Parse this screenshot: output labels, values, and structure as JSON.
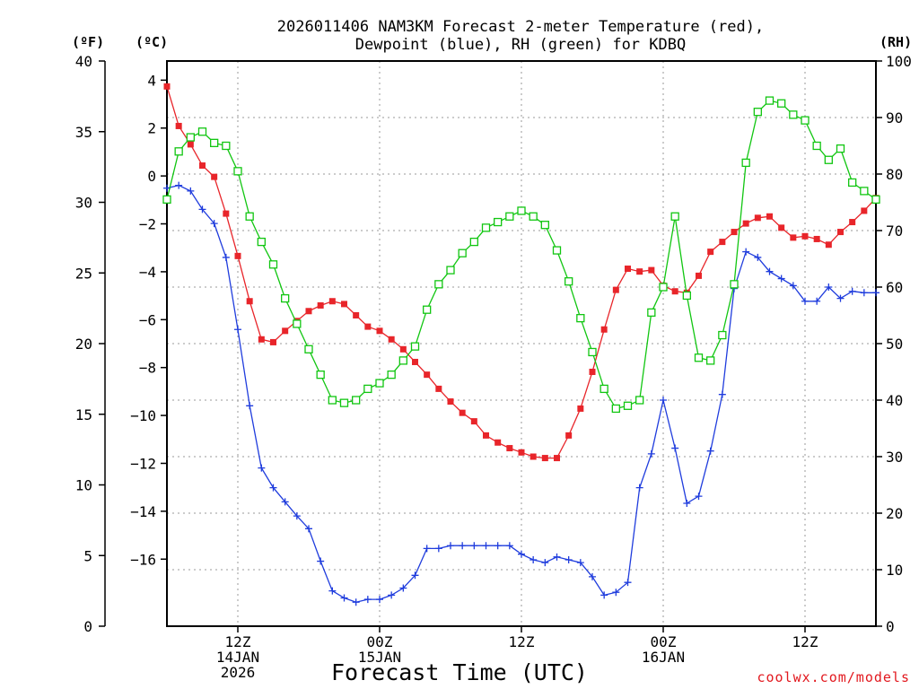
{
  "chart_data": {
    "type": "line",
    "title_line1": "2026011406 NAM3KM Forecast 2-meter Temperature (red),",
    "title_line2": "Dewpoint (blue), RH (green) for KDBQ",
    "xlabel": "Forecast Time (UTC)",
    "credit": "coolwx.com/models",
    "unit_f": "(ºF)",
    "unit_c": "(ºC)",
    "unit_rh": "(RH)",
    "x_range_hours": [
      0,
      60
    ],
    "yleft_f_range": [
      0,
      40
    ],
    "yleft_c_range": [
      -18.8,
      4.8
    ],
    "yright_rh_range": [
      0,
      100
    ],
    "yleft_f_ticks": [
      "0",
      "5",
      "10",
      "15",
      "20",
      "25",
      "30",
      "35",
      "40"
    ],
    "yleft_c_ticks": [
      "−16",
      "−14",
      "−12",
      "−10",
      "−8",
      "−6",
      "−4",
      "−2",
      "0",
      "2",
      "4"
    ],
    "yright_rh_ticks": [
      "0",
      "10",
      "20",
      "30",
      "40",
      "50",
      "60",
      "70",
      "80",
      "90",
      "100"
    ],
    "x_ticks": [
      {
        "hour": 6,
        "line1": "12Z",
        "line2": "14JAN",
        "line3": "2026"
      },
      {
        "hour": 18,
        "line1": "00Z",
        "line2": "15JAN",
        "line3": ""
      },
      {
        "hour": 30,
        "line1": "12Z",
        "line2": "",
        "line3": ""
      },
      {
        "hour": 42,
        "line1": "00Z",
        "line2": "16JAN",
        "line3": ""
      },
      {
        "hour": 54,
        "line1": "12Z",
        "line2": "",
        "line3": ""
      }
    ],
    "colors": {
      "temperature": "#e8252a",
      "dewpoint": "#1f3cdd",
      "rh": "#11c611",
      "grid": "#9a9a9a"
    },
    "series": [
      {
        "name": "Temperature",
        "units": "F",
        "values": [
          38.2,
          35.4,
          34.1,
          32.6,
          31.8,
          29.2,
          26.2,
          23.0,
          20.3,
          20.1,
          20.9,
          21.6,
          22.3,
          22.7,
          23.0,
          22.8,
          22.0,
          21.2,
          20.9,
          20.3,
          19.6,
          18.7,
          17.8,
          16.8,
          15.9,
          15.1,
          14.5,
          13.5,
          13.0,
          12.6,
          12.3,
          12.0,
          11.9,
          11.9,
          13.5,
          15.4,
          18.0,
          21.0,
          23.8,
          25.3,
          25.1,
          25.2,
          24.1,
          23.7,
          23.6,
          24.8,
          26.5,
          27.2,
          27.9,
          28.5,
          28.9,
          29.0,
          28.2,
          27.5,
          27.6,
          27.4,
          27.0,
          27.9,
          28.6,
          29.4,
          30.3
        ]
      },
      {
        "name": "Dewpoint",
        "units": "F",
        "values": [
          31.0,
          31.2,
          30.8,
          29.5,
          28.5,
          26.1,
          21.0,
          15.6,
          11.2,
          9.8,
          8.8,
          7.8,
          6.9,
          4.6,
          2.5,
          2.0,
          1.7,
          1.9,
          1.9,
          2.2,
          2.7,
          3.6,
          5.5,
          5.5,
          5.7,
          5.7,
          5.7,
          5.7,
          5.7,
          5.7,
          5.1,
          4.7,
          4.5,
          4.9,
          4.7,
          4.5,
          3.5,
          2.2,
          2.4,
          3.1,
          9.8,
          12.2,
          16.0,
          12.6,
          8.7,
          9.2,
          12.4,
          16.4,
          23.9,
          26.5,
          26.1,
          25.1,
          24.6,
          24.1,
          23.0,
          23.0,
          24.0,
          23.2,
          23.7,
          23.6,
          23.6
        ]
      },
      {
        "name": "RH",
        "units": "%",
        "values": [
          75.5,
          84.0,
          86.5,
          87.5,
          85.5,
          85.0,
          80.5,
          72.5,
          68.0,
          64.0,
          58.0,
          53.5,
          49.0,
          44.5,
          40.0,
          39.5,
          40.0,
          42.0,
          43.0,
          44.5,
          47.0,
          49.5,
          56.0,
          60.5,
          63.0,
          66.0,
          68.0,
          70.5,
          71.5,
          72.5,
          73.5,
          72.5,
          71.0,
          66.5,
          61.0,
          54.5,
          48.5,
          42.0,
          38.5,
          39.0,
          40.0,
          55.5,
          60.0,
          72.5,
          58.5,
          47.5,
          47.0,
          51.5,
          60.5,
          82.0,
          91.0,
          93.0,
          92.5,
          90.5,
          89.5,
          85.0,
          82.5,
          84.5,
          78.5,
          77.0,
          75.5
        ]
      }
    ]
  }
}
